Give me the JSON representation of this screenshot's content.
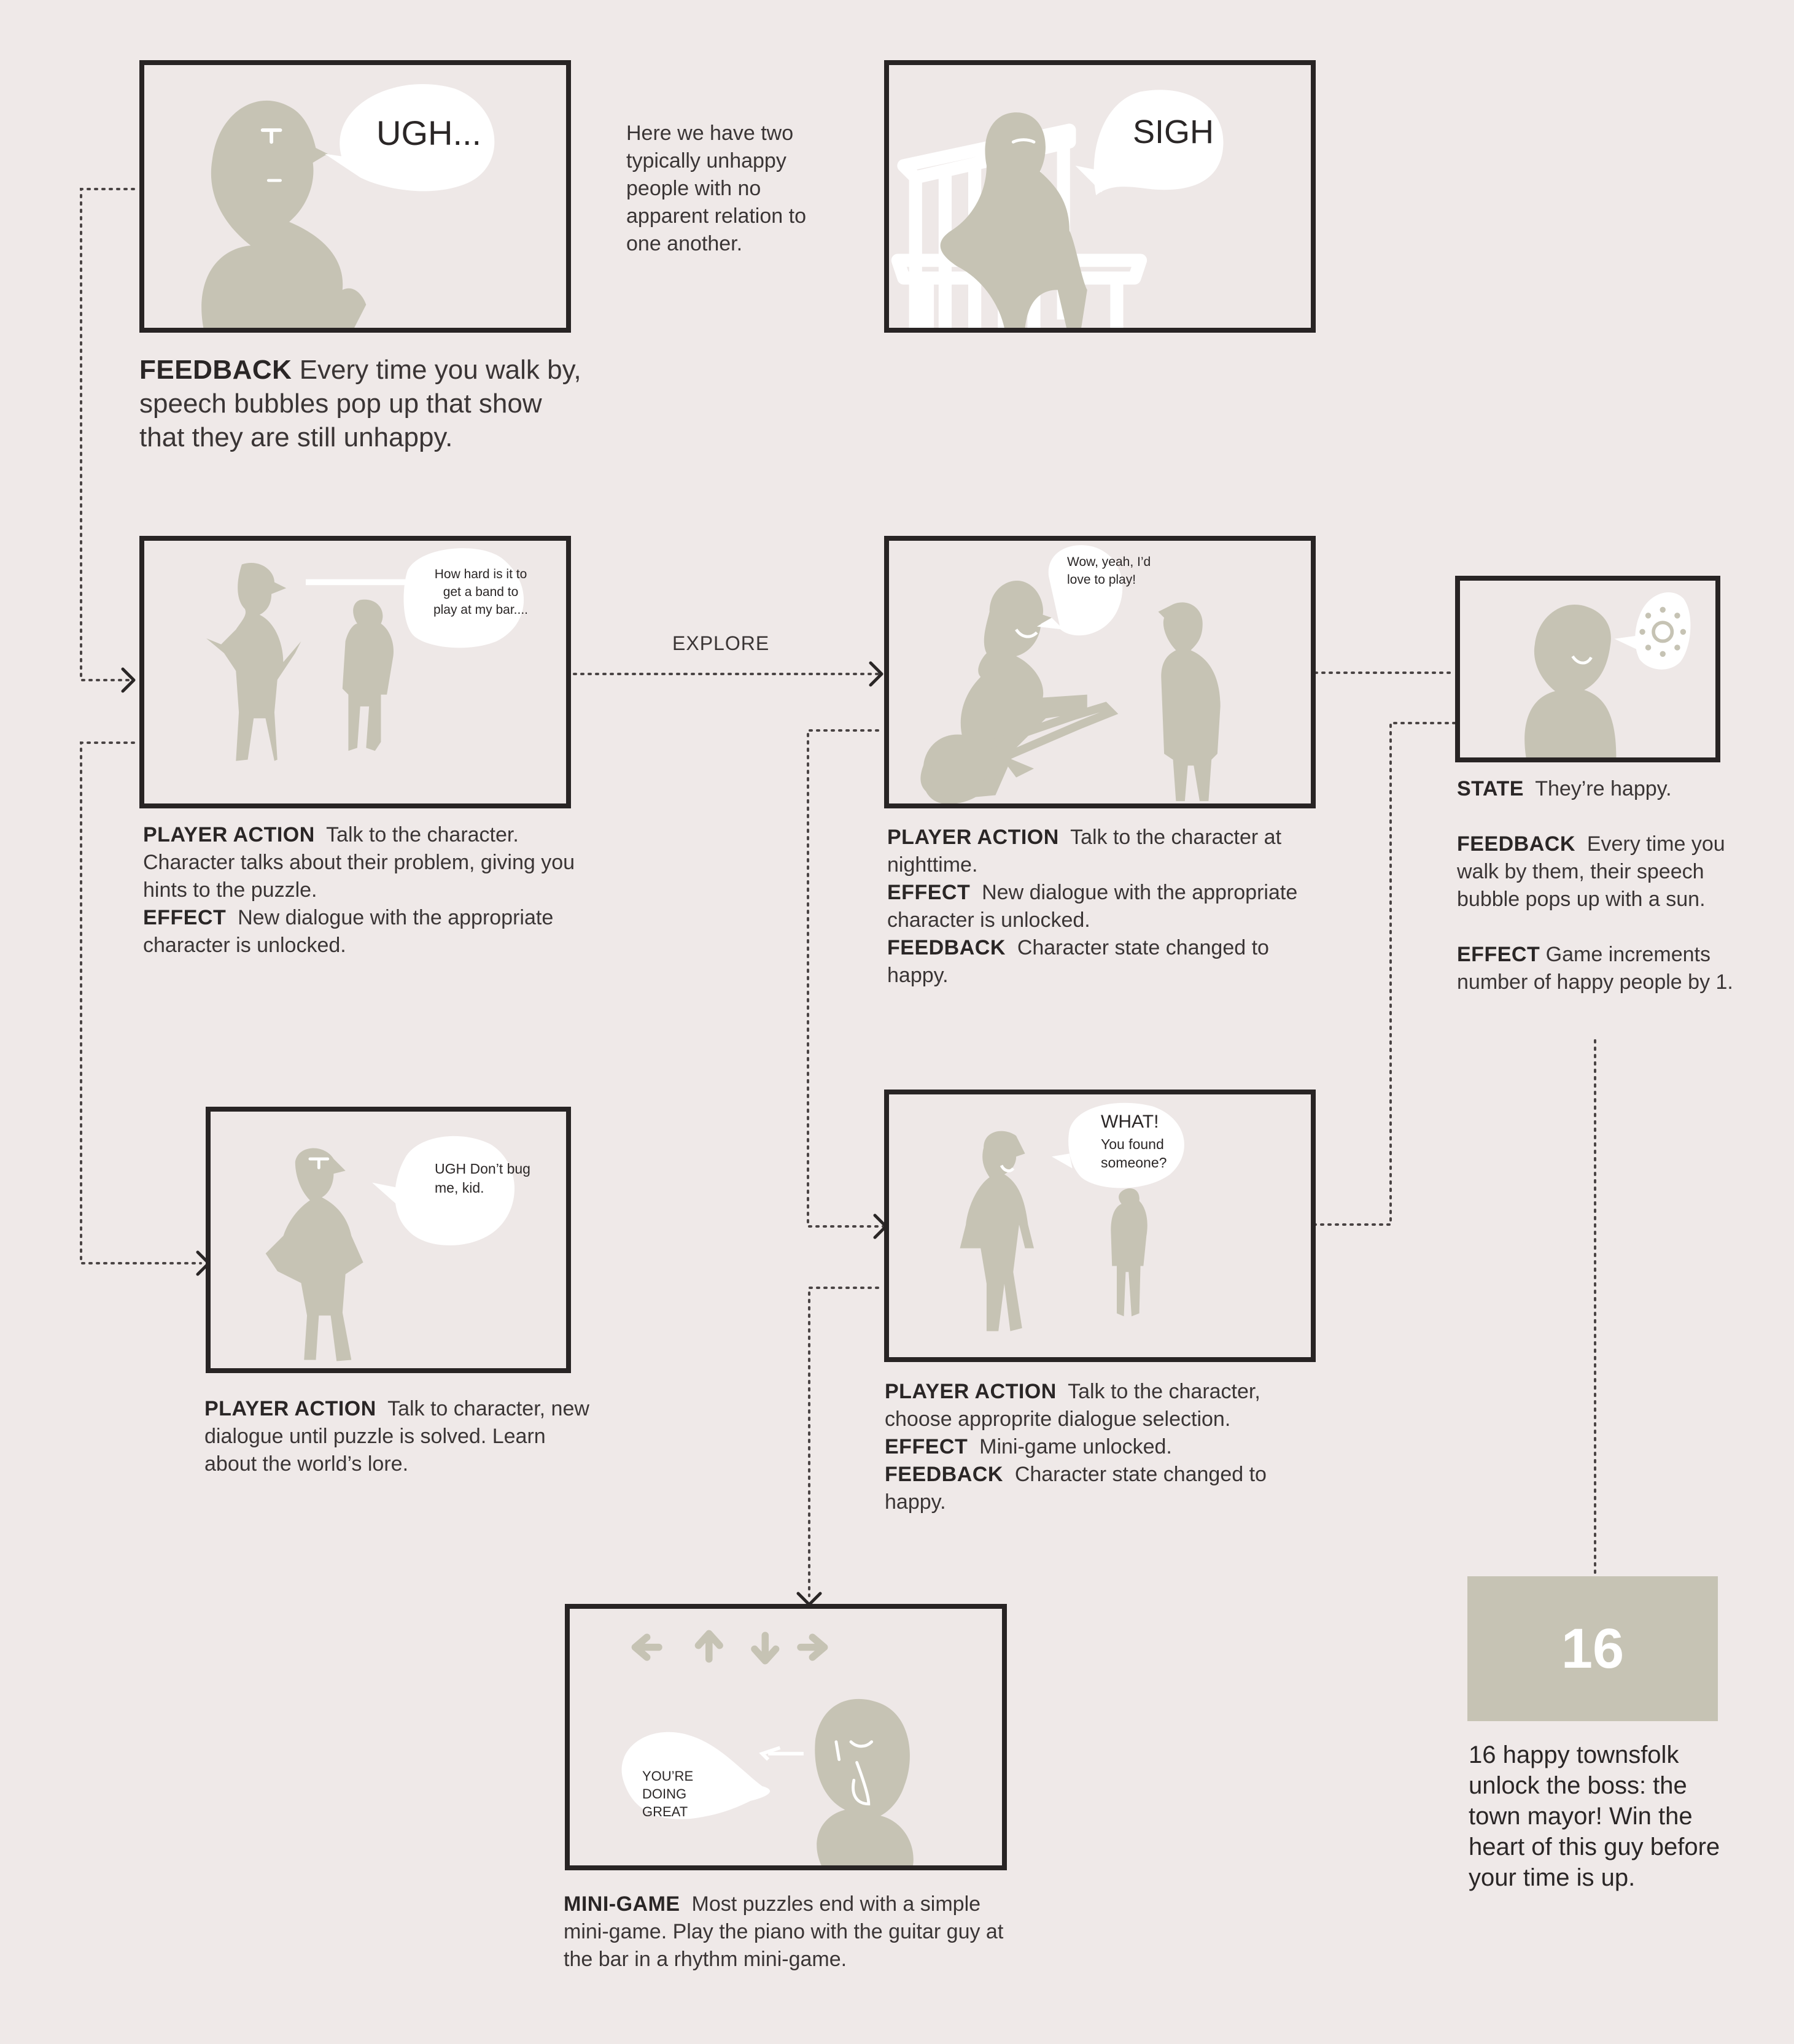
{
  "panels": {
    "p1": {
      "bubble": "UGH..."
    },
    "p2": {
      "bubble": "SIGH"
    },
    "p3": {
      "bubble": "How hard is it to get a band to play at my bar...."
    },
    "p4": {
      "bubble": "Wow, yeah, I’d love to play!"
    },
    "p5": {
      "bubble": ""
    },
    "p6": {
      "bubble": "UGH Don’t bug me, kid."
    },
    "p7": {
      "bubble_title": "WHAT!",
      "bubble": "You found someone?"
    },
    "p8": {
      "bubble": "YOU’RE DOING GREAT"
    }
  },
  "intro_note": "Here we have two typically unhappy people with no apparent relation to one another.",
  "explore_label": "EXPLORE",
  "captions": {
    "c1": {
      "k1": "FEEDBACK",
      "t1": "Every time you walk by, speech bubbles pop up that show that they are still unhappy."
    },
    "c3": {
      "k1": "PLAYER ACTION",
      "t1": "Talk to the character. Character talks about their problem, giving you hints to the puzzle.",
      "k2": "EFFECT",
      "t2": "New dialogue with the appropriate character is unlocked."
    },
    "c4": {
      "k1": "PLAYER ACTION",
      "t1": "Talk to the character at nighttime.",
      "k2": "EFFECT",
      "t2": "New dialogue with the appropriate character is unlocked.",
      "k3": "FEEDBACK",
      "t3": "Character state changed to happy."
    },
    "c5": {
      "k1": "STATE",
      "t1": "They’re happy.",
      "k2": "FEEDBACK",
      "t2": "Every time you walk by them, their speech bubble pops up with a sun.",
      "k3": "EFFECT",
      "t3": "Game increments number of happy people by 1."
    },
    "c6": {
      "k1": "PLAYER ACTION",
      "t1": "Talk to character, new dialogue until puzzle is solved. Learn about the world’s lore."
    },
    "c7": {
      "k1": "PLAYER ACTION",
      "t1": "Talk to the character, choose approprite dialogue selection.",
      "k2": "EFFECT",
      "t2": "Mini-game unlocked.",
      "k3": "FEEDBACK",
      "t3": "Character state changed to happy."
    },
    "c8": {
      "k1": "MINI-GAME",
      "t1": "Most puzzles end with a simple mini-game. Play the piano with the guitar guy at the bar in a rhythm mini-game."
    }
  },
  "counter": {
    "value": "16",
    "text": "16 happy townsfolk unlock the boss: the town mayor! Win the heart of this guy before your time is up."
  },
  "colors": {
    "background": "#efe9e8",
    "figure": "#c6c3b4",
    "frame": "#282424",
    "bubble": "#ffffff"
  }
}
